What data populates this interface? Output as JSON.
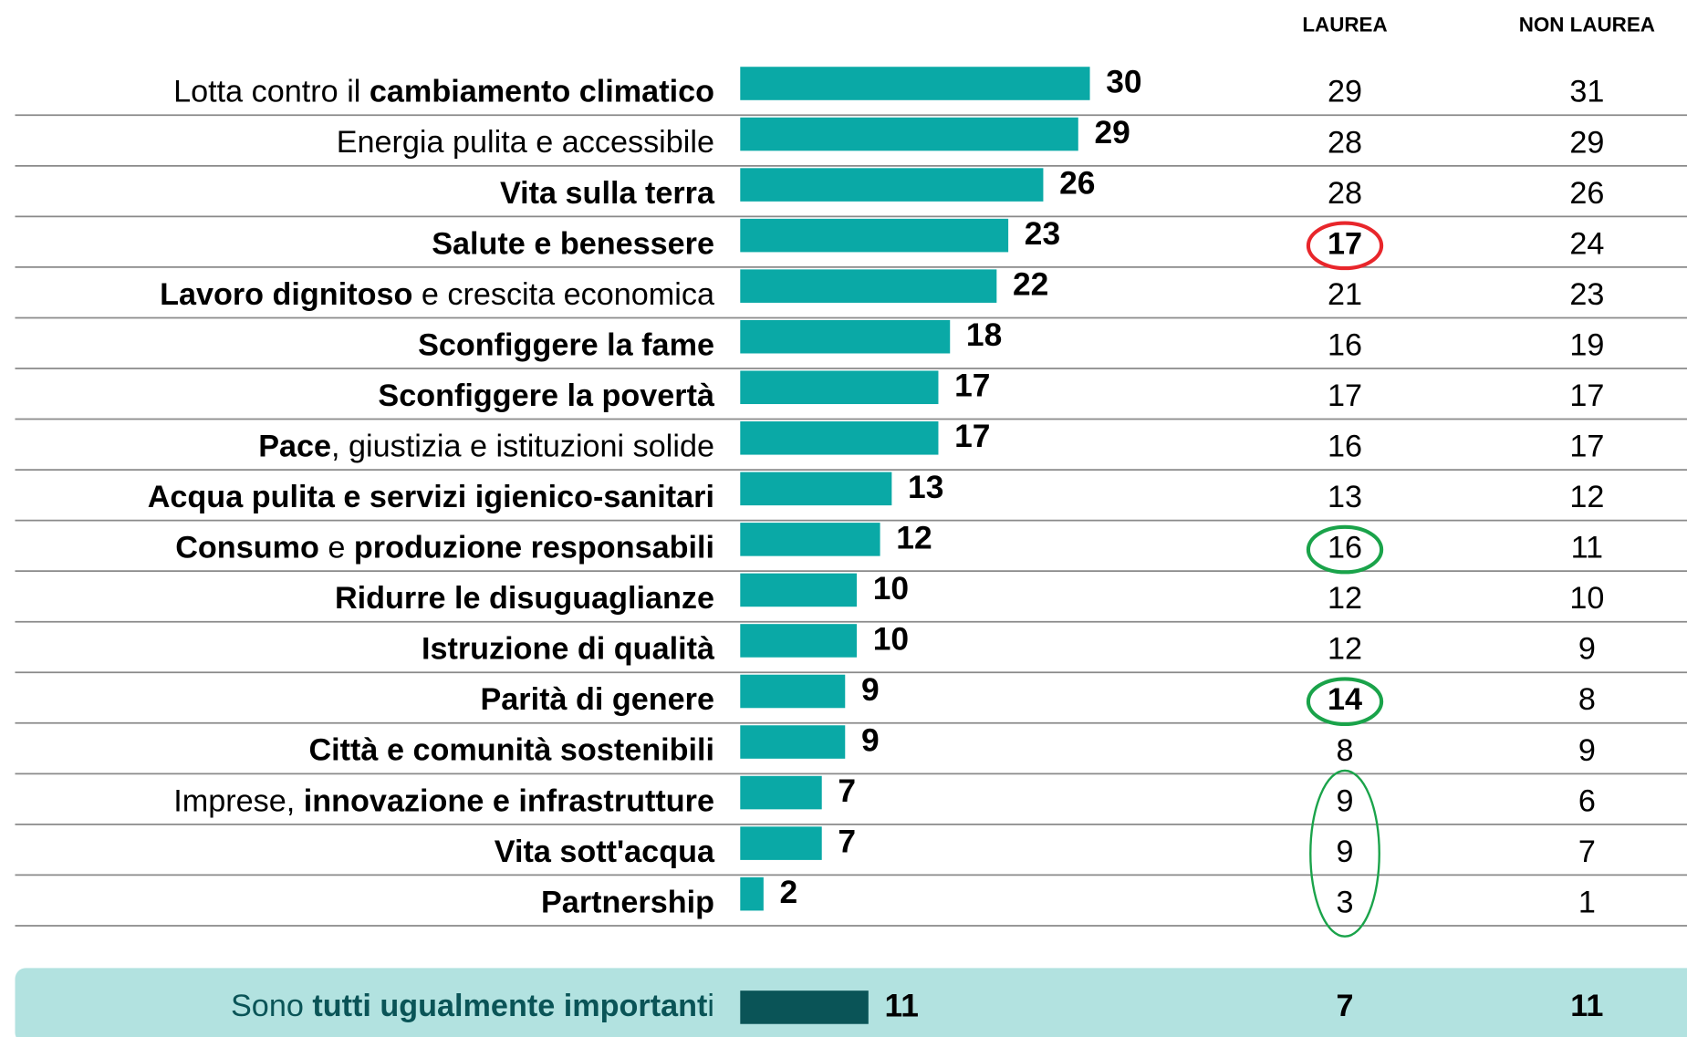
{
  "chart_data": {
    "type": "bar",
    "color": "#0aa9a6",
    "categories": [
      [
        {
          "text": "Lotta contro il ",
          "bold": false
        },
        {
          "text": "cambiamento climatico",
          "bold": true
        }
      ],
      [
        {
          "text": "Energia pulita e accessibile",
          "bold": false
        }
      ],
      [
        {
          "text": "Vita sulla terra",
          "bold": true
        }
      ],
      [
        {
          "text": "Salute e benessere",
          "bold": true
        }
      ],
      [
        {
          "text": "Lavoro dignitoso",
          "bold": true
        },
        {
          "text": " e crescita economica",
          "bold": false
        }
      ],
      [
        {
          "text": "Sconfiggere la fame",
          "bold": true
        }
      ],
      [
        {
          "text": "Sconfiggere la povertà",
          "bold": true
        }
      ],
      [
        {
          "text": "Pace",
          "bold": true
        },
        {
          "text": ", giustizia e istituzioni solide",
          "bold": false
        }
      ],
      [
        {
          "text": "Acqua pulita e servizi igienico-sanitari",
          "bold": true
        }
      ],
      [
        {
          "text": "Consumo",
          "bold": true
        },
        {
          "text": " e ",
          "bold": false
        },
        {
          "text": "produzione responsabili",
          "bold": true
        }
      ],
      [
        {
          "text": "Ridurre le disuguaglianze",
          "bold": true
        }
      ],
      [
        {
          "text": "Istruzione di qualità",
          "bold": true
        }
      ],
      [
        {
          "text": "Parità di genere",
          "bold": true
        }
      ],
      [
        {
          "text": "Città e comunità sostenibili",
          "bold": true
        }
      ],
      [
        {
          "text": "Imprese, ",
          "bold": false
        },
        {
          "text": "innovazione e infrastrutture",
          "bold": true
        }
      ],
      [
        {
          "text": "Vita sott'acqua",
          "bold": true
        }
      ],
      [
        {
          "text": "Partnership",
          "bold": true
        }
      ]
    ],
    "values": [
      30,
      29,
      26,
      23,
      22,
      18,
      17,
      17,
      13,
      12,
      10,
      10,
      9,
      9,
      7,
      7,
      2
    ],
    "columns": [
      {
        "name": "LAUREA",
        "values": [
          29,
          28,
          28,
          17,
          21,
          16,
          17,
          16,
          13,
          16,
          12,
          12,
          14,
          8,
          9,
          9,
          3
        ]
      },
      {
        "name": "NON LAUREA",
        "values": [
          31,
          29,
          26,
          24,
          23,
          19,
          17,
          17,
          12,
          11,
          10,
          9,
          8,
          9,
          6,
          7,
          1
        ]
      }
    ],
    "highlights": [
      {
        "column": 0,
        "rows": [
          3
        ],
        "color": "#e8262b",
        "bold": true
      },
      {
        "column": 0,
        "rows": [
          9
        ],
        "color": "#1aa34a",
        "bold": false
      },
      {
        "column": 0,
        "rows": [
          12
        ],
        "color": "#1aa34a",
        "bold": true
      },
      {
        "column": 0,
        "rows": [
          14,
          15,
          16
        ],
        "color": "#1aa34a",
        "bold": false
      }
    ],
    "summary": {
      "label": [
        {
          "text": "Sono ",
          "bold": false
        },
        {
          "text": "tutti ugualmente important",
          "bold": true
        },
        {
          "text": "i",
          "bold": false
        }
      ],
      "value": 11,
      "columns": [
        7,
        11
      ],
      "color": "#0a5457",
      "background": "#b2e2e0"
    }
  }
}
